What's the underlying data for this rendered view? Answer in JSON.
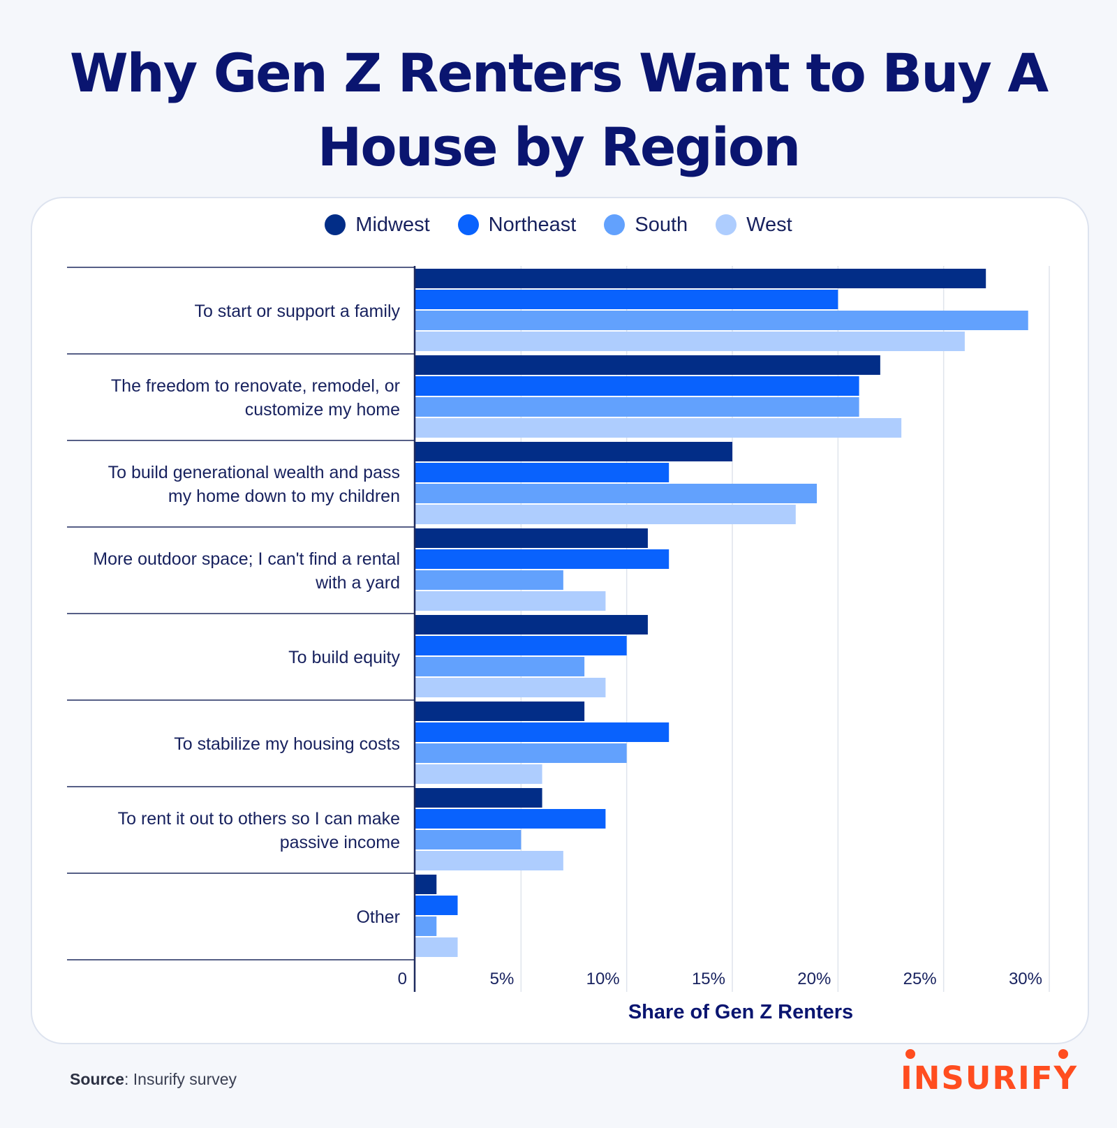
{
  "title": "Why Gen Z Renters Want to Buy A House by Region",
  "source_label": "Source",
  "source_text": ": Insurify survey",
  "logo_text": "INSURIFY",
  "colors": {
    "title": "#0a1570",
    "brand": "#ff4d1f"
  },
  "chart_data": {
    "type": "bar",
    "orientation": "horizontal",
    "categories": [
      "To start or support a family",
      "The freedom to renovate, remodel, or customize my home",
      "To build generational wealth and pass my home down to my children",
      "More outdoor space; I can't find a rental with a yard",
      "To build equity",
      "To stabilize my housing costs",
      "To rent it out to others so I can make passive income",
      "Other"
    ],
    "category_lines": [
      [
        "To start or support a family"
      ],
      [
        "The freedom to renovate, remodel, or",
        "customize my home"
      ],
      [
        "To build generational wealth and pass",
        "my home down to my children"
      ],
      [
        "More outdoor space; I can't find a rental",
        "with a yard"
      ],
      [
        "To build equity"
      ],
      [
        "To stabilize my housing costs"
      ],
      [
        "To rent it out to others so I can make",
        "passive income"
      ],
      [
        "Other"
      ]
    ],
    "series": [
      {
        "name": "Midwest",
        "color": "#022d87",
        "values": [
          27,
          22,
          15,
          11,
          11,
          8,
          6,
          1
        ]
      },
      {
        "name": "Northeast",
        "color": "#0962fd",
        "values": [
          20,
          21,
          12,
          12,
          10,
          12,
          9,
          2
        ]
      },
      {
        "name": "South",
        "color": "#62a1fd",
        "values": [
          29,
          21,
          19,
          7,
          8,
          10,
          5,
          1
        ]
      },
      {
        "name": "West",
        "color": "#aecdfe",
        "values": [
          26,
          23,
          18,
          9,
          9,
          6,
          7,
          2
        ]
      }
    ],
    "xlabel": "Share of Gen Z Renters",
    "ylabel": "",
    "xlim": [
      0,
      30
    ],
    "xticks": [
      {
        "value": 0,
        "label": "0"
      },
      {
        "value": 5,
        "label": "5%"
      },
      {
        "value": 10,
        "label": "10%"
      },
      {
        "value": 15,
        "label": "15%"
      },
      {
        "value": 20,
        "label": "20%"
      },
      {
        "value": 25,
        "label": "25%"
      },
      {
        "value": 30,
        "label": "30%"
      }
    ],
    "grid": true,
    "legend_position": "top-center"
  }
}
